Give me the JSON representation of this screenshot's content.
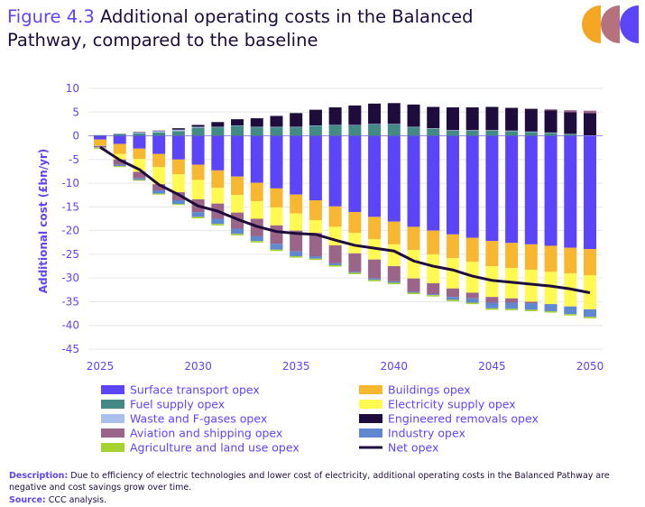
{
  "figure_label": "Figure 4.3",
  "title": "Additional operating costs in the Balanced Pathway, compared to the baseline",
  "description_label": "Description:",
  "description": "Due to efficiency of electric technologies and lower cost of electricity, additional operating costs in the Balanced Pathway are negative and cost savings grow over time.",
  "source_label": "Source:",
  "source": "CCC analysis.",
  "chart_data": {
    "type": "bar",
    "stacked": true,
    "ylabel": "Additional cost (£bn/yr)",
    "xlabel": "",
    "ylim": [
      -45,
      10
    ],
    "yticks": [
      10,
      5,
      0,
      -5,
      -10,
      -15,
      -20,
      -25,
      -30,
      -35,
      -40,
      -45
    ],
    "xtick_labels": [
      "2025",
      "2030",
      "2035",
      "2040",
      "2045",
      "2050"
    ],
    "grid": true,
    "legend": "bottom",
    "categories": [
      2025,
      2026,
      2027,
      2028,
      2029,
      2030,
      2031,
      2032,
      2033,
      2034,
      2035,
      2036,
      2037,
      2038,
      2039,
      2040,
      2041,
      2042,
      2043,
      2044,
      2045,
      2046,
      2047,
      2048,
      2049,
      2050
    ],
    "series": [
      {
        "name": "Surface transport opex",
        "color": "#5c45f8",
        "values": [
          -0.8,
          -1.7,
          -2.7,
          -3.8,
          -5.0,
          -6.1,
          -7.3,
          -8.6,
          -9.9,
          -11.1,
          -12.4,
          -13.6,
          -14.9,
          -16.1,
          -17.1,
          -18.1,
          -19.2,
          -20.0,
          -20.8,
          -21.5,
          -22.2,
          -22.6,
          -22.9,
          -23.2,
          -23.6,
          -23.9
        ]
      },
      {
        "name": "Buildings opex",
        "color": "#f7b731",
        "values": [
          -1.2,
          -2.1,
          -2.2,
          -2.8,
          -3.1,
          -3.2,
          -3.7,
          -3.9,
          -3.9,
          -4.0,
          -4.0,
          -4.2,
          -4.3,
          -4.4,
          -4.7,
          -4.8,
          -4.9,
          -5.0,
          -5.0,
          -5.1,
          -5.3,
          -5.3,
          -5.4,
          -5.5,
          -5.4,
          -5.5
        ]
      },
      {
        "name": "Fuel supply opex",
        "color": "#438a86",
        "values": [
          0.1,
          0.3,
          0.5,
          0.7,
          1.0,
          1.7,
          1.8,
          2.1,
          1.8,
          1.8,
          1.8,
          2.1,
          2.2,
          2.2,
          2.4,
          2.4,
          1.8,
          1.5,
          1.1,
          1.1,
          1.1,
          1.0,
          0.8,
          0.6,
          0.3,
          0.0
        ]
      },
      {
        "name": "Electricity supply opex",
        "color": "#fff952",
        "values": [
          -0.1,
          -1.2,
          -2.7,
          -3.6,
          -3.8,
          -4.1,
          -3.3,
          -3.7,
          -3.7,
          -3.8,
          -3.6,
          -2.7,
          -3.9,
          -4.3,
          -4.3,
          -4.6,
          -6.0,
          -6.1,
          -6.4,
          -6.5,
          -6.5,
          -6.4,
          -6.7,
          -6.8,
          -7.0,
          -7.2
        ]
      },
      {
        "name": "Waste and F-gases opex",
        "color": "#a9c1ea",
        "values": [
          0.1,
          0.1,
          0.2,
          0.3,
          0.3,
          0.2,
          0.1,
          0.1,
          0.1,
          0.1,
          0.1,
          0.1,
          0.1,
          0.1,
          0.1,
          0.1,
          0.1,
          0.1,
          0.1,
          0.1,
          0.1,
          0.1,
          0.1,
          0.1,
          0.1,
          0.1
        ]
      },
      {
        "name": "Engineered removals opex",
        "color": "#1e0c3c",
        "values": [
          0.0,
          0.05,
          0.1,
          0.1,
          0.3,
          0.4,
          1.0,
          1.3,
          1.8,
          2.3,
          2.9,
          3.3,
          3.7,
          4.1,
          4.3,
          4.4,
          4.7,
          4.5,
          4.8,
          4.8,
          4.9,
          4.8,
          4.8,
          4.7,
          4.6,
          4.7
        ]
      },
      {
        "name": "Aviation and shipping opex",
        "color": "#9b6489",
        "values": [
          -0.3,
          -1.1,
          -1.4,
          -1.3,
          -1.7,
          -2.7,
          -3.2,
          -3.4,
          -3.7,
          -3.9,
          -4.4,
          -4.9,
          -3.8,
          -3.9,
          -4.0,
          -3.2,
          -2.8,
          -2.3,
          -1.8,
          -1.2,
          -1.2,
          -0.9,
          -0.3,
          0.2,
          0.4,
          0.5
        ]
      },
      {
        "name": "Industry opex",
        "color": "#6088d0",
        "values": [
          -0.1,
          -0.3,
          -0.3,
          -0.7,
          -0.8,
          -1.0,
          -1.1,
          -1.1,
          -1.0,
          -1.2,
          -1.0,
          -0.5,
          -0.4,
          -0.2,
          -0.3,
          -0.3,
          -0.2,
          -0.2,
          -0.6,
          -0.9,
          -1.2,
          -1.3,
          -1.4,
          -1.5,
          -1.6,
          -1.6
        ]
      },
      {
        "name": "Agriculture and land use opex",
        "color": "#a6d230",
        "values": [
          -0.2,
          -0.2,
          -0.2,
          -0.2,
          -0.2,
          -0.3,
          -0.3,
          -0.3,
          -0.3,
          -0.3,
          -0.3,
          -0.3,
          -0.3,
          -0.3,
          -0.3,
          -0.3,
          -0.3,
          -0.3,
          -0.3,
          -0.3,
          -0.3,
          -0.3,
          -0.3,
          -0.3,
          -0.3,
          -0.3
        ]
      }
    ],
    "line": {
      "name": "Net opex",
      "color": "#1e0c3c",
      "values": [
        -2.4,
        -5.1,
        -7.1,
        -10.3,
        -12.4,
        -14.8,
        -15.9,
        -17.6,
        -19.1,
        -20.2,
        -20.6,
        -20.8,
        -22.0,
        -23.1,
        -23.7,
        -24.3,
        -26.4,
        -27.5,
        -28.3,
        -29.6,
        -30.5,
        -30.9,
        -31.3,
        -31.7,
        -32.3,
        -33.1
      ]
    }
  }
}
